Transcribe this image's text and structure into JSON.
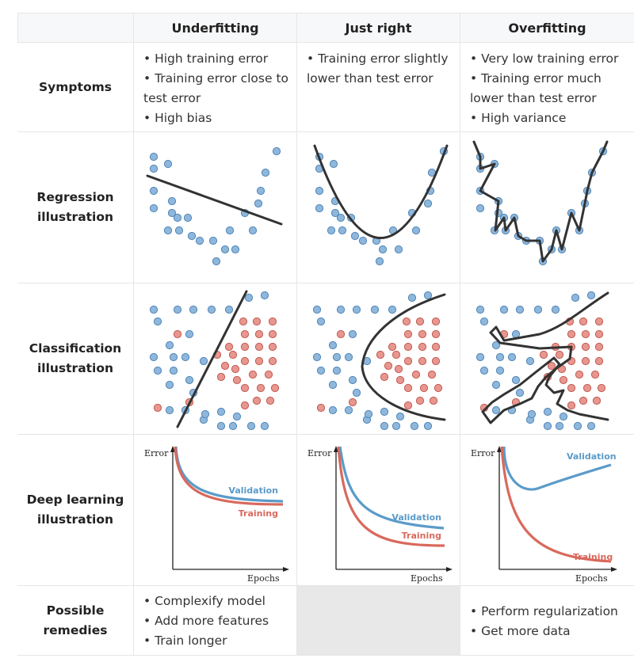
{
  "columns": [
    "",
    "Underfitting",
    "Just right",
    "Overfitting"
  ],
  "rows": {
    "symptoms": {
      "label": [
        "Symptoms"
      ],
      "underfitting": [
        "• High training error",
        "• Training error close to",
        "test error",
        "• High bias"
      ],
      "just_right": [
        "• Training error slightly",
        "lower than test error"
      ],
      "overfitting": [
        "• Very low training error",
        "• Training error much",
        "lower than test error",
        "• High variance"
      ]
    },
    "regression": {
      "label": [
        "Regression",
        "illustration"
      ]
    },
    "classification": {
      "label": [
        "Classification",
        "illustration"
      ]
    },
    "deep_learning": {
      "label": [
        "Deep learning",
        "illustration"
      ],
      "x_axis_label": "Epochs",
      "y_axis_label": "Error",
      "series": [
        "Validation",
        "Training"
      ]
    },
    "remedies": {
      "label": [
        "Possible",
        "remedies"
      ],
      "underfitting": [
        "• Complexify model",
        "• Add more features",
        "• Train longer"
      ],
      "just_right": [],
      "overfitting": [
        "• Perform regularization",
        "• Get more data"
      ]
    }
  },
  "colors": {
    "blue_point": "#8fb7dc",
    "red_point": "#e7978f",
    "validation_curve": "#5b9bc9",
    "training_curve": "#d9695c",
    "fit_line": "#333333",
    "header_bg": "#f7f8fa",
    "empty_cell_bg": "#e8e8e8"
  }
}
